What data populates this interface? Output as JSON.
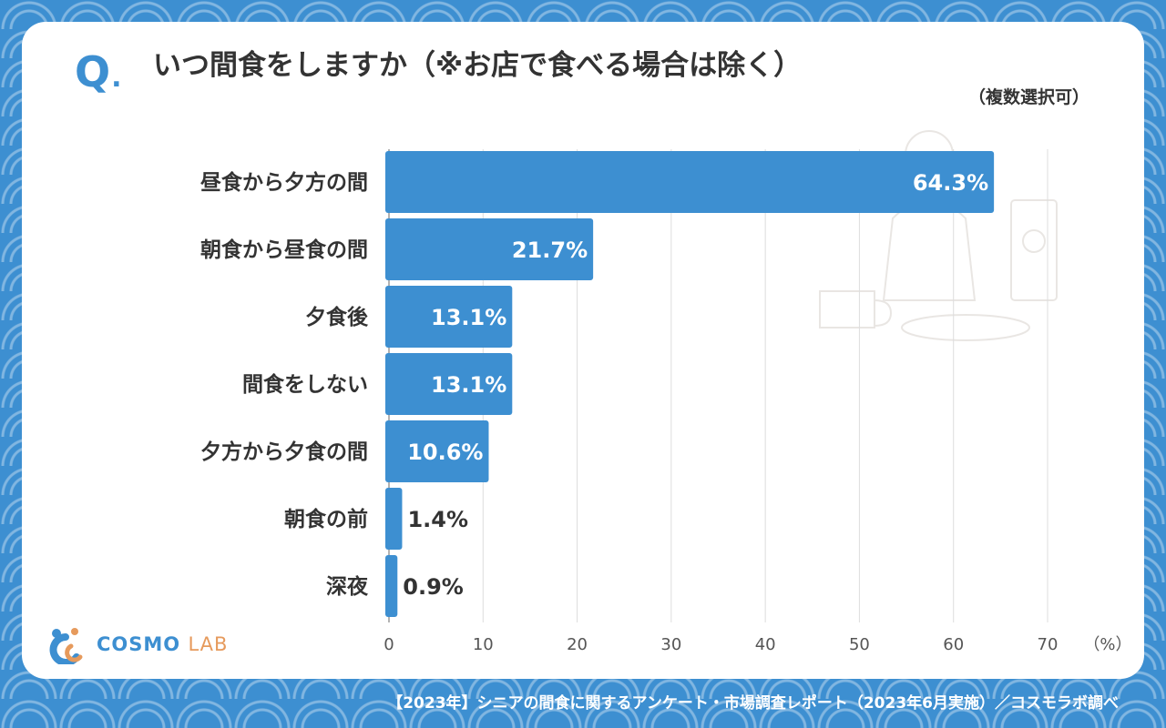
{
  "question": {
    "mark": "Q",
    "dot": ".",
    "title": "いつ間食をしますか（※お店で食べる場合は除く）",
    "note": "（複数選択可）"
  },
  "chart_data": {
    "type": "bar",
    "orientation": "horizontal",
    "categories": [
      "昼食から夕方の間",
      "朝食から昼食の間",
      "夕食後",
      "間食をしない",
      "夕方から夕食の間",
      "朝食の前",
      "深夜"
    ],
    "values": [
      64.3,
      21.7,
      13.1,
      13.1,
      10.6,
      1.4,
      0.9
    ],
    "value_labels": [
      "64.3%",
      "21.7%",
      "13.1%",
      "13.1%",
      "10.6%",
      "1.4%",
      "0.9%"
    ],
    "xlim": [
      0,
      70
    ],
    "ticks": [
      0,
      10,
      20,
      30,
      40,
      50,
      60,
      70
    ],
    "tick_labels": [
      "0",
      "10",
      "20",
      "30",
      "40",
      "50",
      "60",
      "70"
    ],
    "unit_label": "（%）",
    "grid": true,
    "bar_color": "#3d8fd1"
  },
  "logo": {
    "name": "COSMO",
    "suffix": "LAB"
  },
  "footer": "【2023年】シニアの間食に関するアンケート・市場調査レポート（2023年6月実施）／コスモラボ調べ",
  "colors": {
    "accent": "#3d8fd1",
    "text": "#333333",
    "logo_orange": "#e69a5c"
  }
}
